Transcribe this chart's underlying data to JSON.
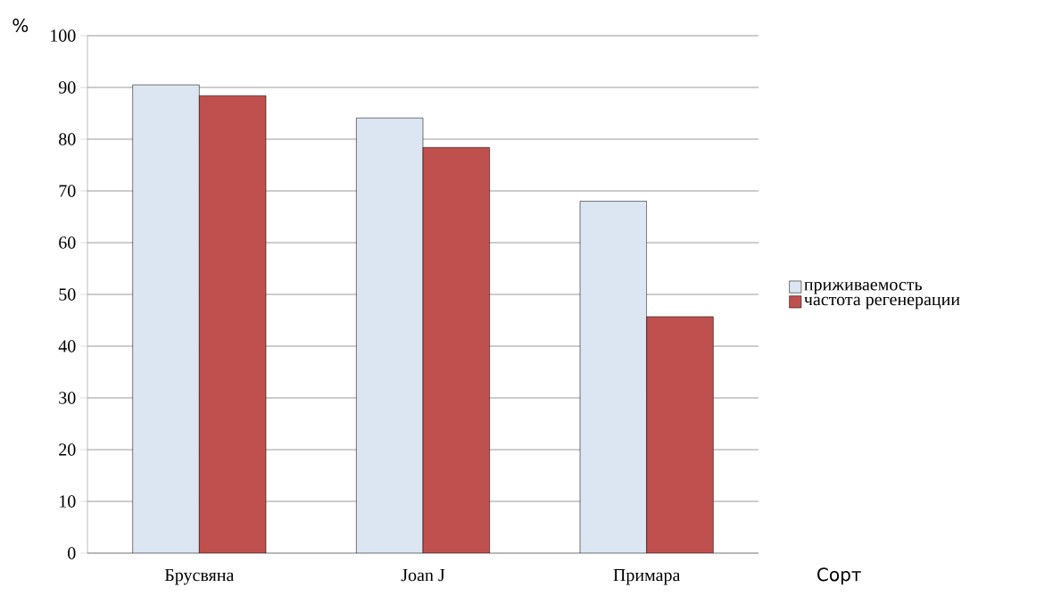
{
  "chart_data": {
    "type": "bar",
    "xlabel": "Сорт",
    "ylabel": "%",
    "categories": [
      "Брусвяна",
      "Joan J",
      "Примара"
    ],
    "series": [
      {
        "name": "приживаемость",
        "color": "#dce6f2",
        "values": [
          90.5,
          84.1,
          68.0
        ]
      },
      {
        "name": "частота регенерации",
        "color": "#c0504d",
        "values": [
          88.4,
          78.4,
          45.7
        ]
      }
    ],
    "ylim": [
      0,
      100
    ],
    "yticks": [
      0,
      10,
      20,
      30,
      40,
      50,
      60,
      70,
      80,
      90,
      100
    ],
    "grid": "y",
    "legend": "right"
  }
}
